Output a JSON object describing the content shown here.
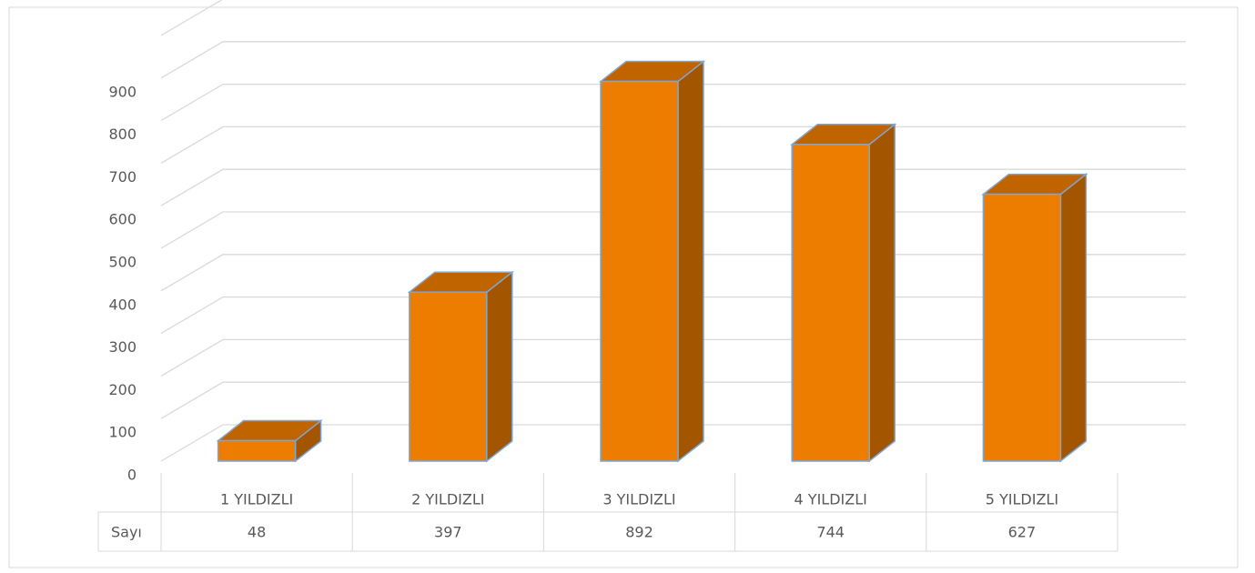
{
  "chart_data": {
    "type": "bar3d",
    "categories": [
      "1 YILDIZLI",
      "2 YILDIZLI",
      "3 YILDIZLI",
      "4 YILDIZLI",
      "5 YILDIZLI"
    ],
    "series": [
      {
        "name": "Sayı",
        "color": "#ED7D00",
        "values": [
          48,
          397,
          892,
          744,
          627
        ]
      }
    ],
    "ylim": [
      0,
      1000
    ],
    "yticks": [
      0,
      100,
      200,
      300,
      400,
      500,
      600,
      700,
      800,
      900
    ],
    "grid": true
  }
}
